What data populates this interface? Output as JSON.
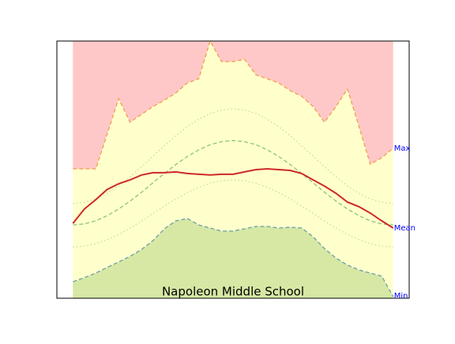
{
  "chart_data": {
    "type": "band",
    "title": "Napoleon Middle School",
    "x": [
      0,
      1,
      2,
      3,
      4,
      5,
      6,
      7,
      8,
      9,
      10,
      11,
      12,
      13,
      14,
      15,
      16,
      17,
      18,
      19,
      20,
      21,
      22,
      23,
      24,
      25,
      26,
      27,
      28
    ],
    "xlim": [
      -1.4,
      29.4
    ],
    "ylim": [
      0,
      100
    ],
    "series": [
      {
        "name": "Max",
        "color": "#f0a050",
        "dash": "dashed",
        "fill": "#ffc8c8",
        "fill_to": "top",
        "values": [
          50.3,
          50.3,
          50.3,
          63.8,
          77.6,
          68.4,
          71.5,
          74.5,
          77.0,
          79.8,
          83.7,
          85.3,
          100,
          92.0,
          92.0,
          92.9,
          86.8,
          85.3,
          83.7,
          80.7,
          78.5,
          74.5,
          68.4,
          74.5,
          81.3,
          66.9,
          52.1,
          54.6,
          58.3
        ]
      },
      {
        "name": "Mean",
        "color": "#cc2a2a",
        "dash": "solid",
        "values": [
          29.1,
          34.7,
          38.3,
          42.3,
          44.5,
          46.0,
          47.9,
          48.8,
          48.8,
          49.1,
          48.5,
          48.2,
          47.9,
          48.2,
          48.2,
          49.1,
          50.0,
          50.3,
          50.0,
          49.7,
          48.5,
          46.0,
          43.6,
          40.8,
          37.4,
          35.6,
          33.1,
          30.1,
          27.3
        ]
      },
      {
        "name": "Min",
        "color": "#6aa0a8",
        "dash": "dashed",
        "fill": "#d6e8a4",
        "fill_to": "bottom",
        "band_fill": "#ffffcc",
        "values": [
          6.4,
          8.0,
          9.8,
          12.0,
          14.1,
          16.3,
          19.0,
          22.4,
          27.0,
          30.1,
          31.0,
          28.5,
          27.3,
          26.1,
          26.1,
          27.0,
          27.9,
          27.9,
          27.3,
          27.6,
          27.3,
          23.9,
          19.3,
          15.6,
          12.9,
          11.0,
          9.8,
          8.6,
          0.6
        ]
      },
      {
        "color": "#8cc47a",
        "dash": "dashed",
        "values": [
          28.5,
          28.9,
          30.1,
          32.1,
          34.7,
          37.8,
          41.2,
          44.9,
          48.5,
          52.0,
          55.1,
          57.7,
          59.7,
          60.9,
          61.3,
          60.9,
          59.7,
          57.7,
          55.1,
          52.0,
          48.5,
          44.9,
          41.2,
          37.8,
          34.7,
          32.1,
          30.1,
          28.9,
          28.5
        ]
      },
      {
        "color": "#ccd8a0",
        "dash": "dotted",
        "values": [
          36.8,
          37.3,
          38.6,
          40.8,
          43.7,
          47.2,
          51.1,
          55.2,
          59.3,
          63.2,
          66.7,
          69.6,
          71.8,
          73.2,
          73.6,
          73.2,
          71.8,
          69.6,
          66.7,
          63.2,
          59.3,
          55.2,
          51.1,
          47.2,
          43.7,
          40.8,
          38.6,
          37.3,
          36.8
        ]
      },
      {
        "color": "#ccd8a0",
        "dash": "dotted",
        "values": [
          19.9,
          20.2,
          21.2,
          22.8,
          24.8,
          27.3,
          30.0,
          33.0,
          35.8,
          38.6,
          41.1,
          43.2,
          44.7,
          45.7,
          46.0,
          45.7,
          44.7,
          43.2,
          41.1,
          38.6,
          35.8,
          33.0,
          30.0,
          27.3,
          24.8,
          22.8,
          21.2,
          20.2,
          19.9
        ]
      }
    ]
  }
}
